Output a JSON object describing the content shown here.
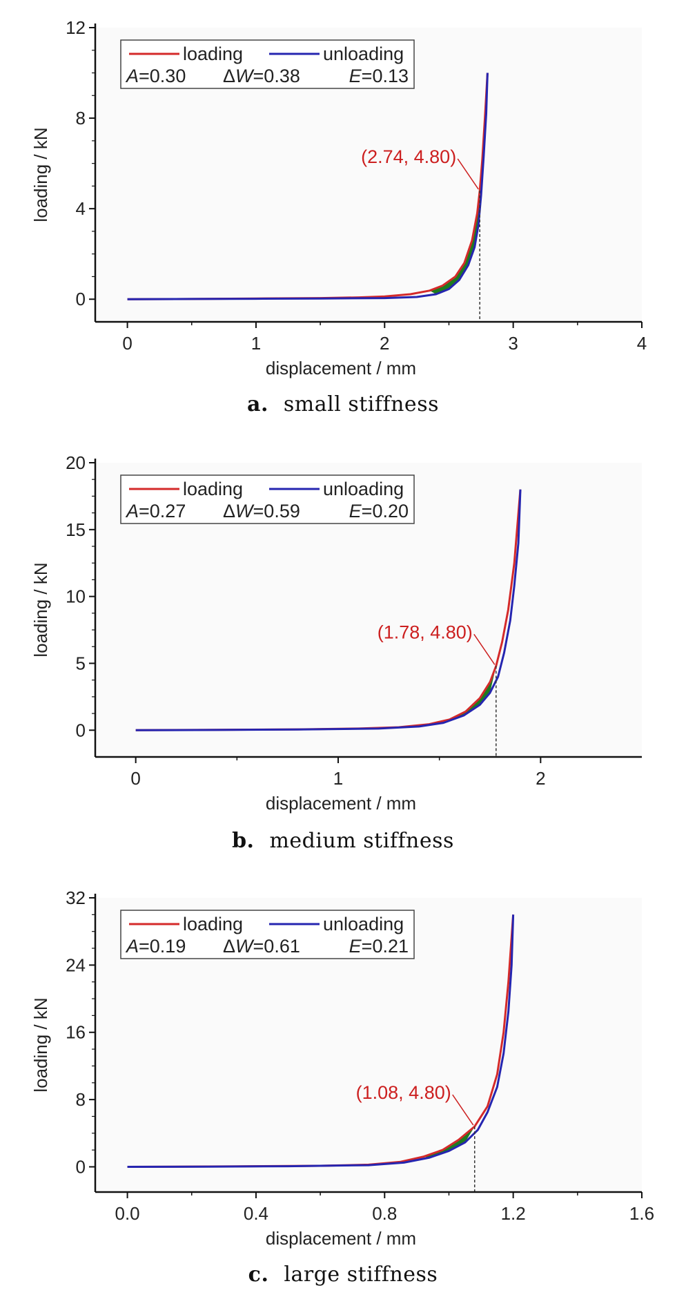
{
  "chart_data": [
    {
      "type": "line",
      "caption_letter": "a.",
      "caption_text": "small stiffness",
      "xlabel": "displacement / mm",
      "ylabel": "loading / kN",
      "xlim": [
        -0.25,
        4
      ],
      "ylim": [
        -1,
        12
      ],
      "xticks": [
        "0",
        "1",
        "2",
        "3",
        "4"
      ],
      "yticks": [
        "0",
        "4",
        "8",
        "12"
      ],
      "legend": {
        "loading_label": "loading",
        "unloading_label": "unloading",
        "A": "0.30",
        "dW": "0.38",
        "E": "0.13",
        "placement": "top-left"
      },
      "annotation": {
        "text": "(2.74, 4.80)",
        "x": 2.74,
        "y": 4.8
      },
      "series": [
        {
          "name": "loading",
          "color": "#d42a2a",
          "points": [
            [
              0,
              0
            ],
            [
              0.5,
              0.01
            ],
            [
              1,
              0.03
            ],
            [
              1.5,
              0.05
            ],
            [
              1.8,
              0.08
            ],
            [
              2.0,
              0.12
            ],
            [
              2.2,
              0.22
            ],
            [
              2.35,
              0.38
            ],
            [
              2.45,
              0.6
            ],
            [
              2.55,
              1.0
            ],
            [
              2.62,
              1.6
            ],
            [
              2.68,
              2.6
            ],
            [
              2.72,
              3.8
            ],
            [
              2.74,
              4.8
            ],
            [
              2.76,
              6.2
            ],
            [
              2.78,
              8.0
            ],
            [
              2.8,
              10.0
            ]
          ]
        },
        {
          "name": "unloading",
          "color": "#2525b0",
          "points": [
            [
              2.8,
              10.0
            ],
            [
              2.79,
              8.2
            ],
            [
              2.77,
              6.3
            ],
            [
              2.75,
              4.6
            ],
            [
              2.73,
              3.3
            ],
            [
              2.7,
              2.3
            ],
            [
              2.65,
              1.5
            ],
            [
              2.58,
              0.85
            ],
            [
              2.5,
              0.45
            ],
            [
              2.4,
              0.22
            ],
            [
              2.25,
              0.1
            ],
            [
              2.0,
              0.05
            ],
            [
              1.5,
              0.03
            ],
            [
              1.0,
              0.02
            ],
            [
              0.5,
              0.01
            ],
            [
              0,
              0
            ]
          ]
        }
      ]
    },
    {
      "type": "line",
      "caption_letter": "b.",
      "caption_text": "medium stiffness",
      "xlabel": "displacement / mm",
      "ylabel": "loading / kN",
      "xlim": [
        -0.2,
        2.5
      ],
      "ylim": [
        -2,
        20
      ],
      "xticks": [
        "0",
        "1",
        "2"
      ],
      "yticks": [
        "0",
        "5",
        "10",
        "15",
        "20"
      ],
      "legend": {
        "loading_label": "loading",
        "unloading_label": "unloading",
        "A": "0.27",
        "dW": "0.59",
        "E": "0.20",
        "placement": "top-left"
      },
      "annotation": {
        "text": "(1.78, 4.80)",
        "x": 1.78,
        "y": 4.8
      },
      "series": [
        {
          "name": "loading",
          "color": "#d42a2a",
          "points": [
            [
              0,
              0
            ],
            [
              0.4,
              0.03
            ],
            [
              0.8,
              0.06
            ],
            [
              1.1,
              0.12
            ],
            [
              1.3,
              0.22
            ],
            [
              1.45,
              0.45
            ],
            [
              1.55,
              0.8
            ],
            [
              1.63,
              1.4
            ],
            [
              1.7,
              2.4
            ],
            [
              1.75,
              3.6
            ],
            [
              1.78,
              4.8
            ],
            [
              1.81,
              6.6
            ],
            [
              1.84,
              9.0
            ],
            [
              1.87,
              12.5
            ],
            [
              1.9,
              18.0
            ]
          ]
        },
        {
          "name": "unloading",
          "color": "#2525b0",
          "points": [
            [
              1.9,
              18.0
            ],
            [
              1.89,
              14.0
            ],
            [
              1.87,
              10.8
            ],
            [
              1.85,
              8.2
            ],
            [
              1.82,
              5.8
            ],
            [
              1.79,
              4.0
            ],
            [
              1.75,
              2.8
            ],
            [
              1.7,
              1.9
            ],
            [
              1.62,
              1.1
            ],
            [
              1.52,
              0.55
            ],
            [
              1.4,
              0.28
            ],
            [
              1.2,
              0.12
            ],
            [
              0.8,
              0.05
            ],
            [
              0.4,
              0.02
            ],
            [
              0,
              0
            ]
          ]
        }
      ]
    },
    {
      "type": "line",
      "caption_letter": "c.",
      "caption_text": "large stiffness",
      "xlabel": "displacement / mm",
      "ylabel": "loading / kN",
      "xlim": [
        -0.1,
        1.6
      ],
      "ylim": [
        -3,
        32
      ],
      "xticks": [
        "0.0",
        "0.4",
        "0.8",
        "1.2",
        "1.6"
      ],
      "yticks": [
        "0",
        "8",
        "16",
        "24",
        "32"
      ],
      "legend": {
        "loading_label": "loading",
        "unloading_label": "unloading",
        "A": "0.19",
        "dW": "0.61",
        "E": "0.21",
        "placement": "top-left"
      },
      "annotation": {
        "text": "(1.08, 4.80)",
        "x": 1.08,
        "y": 4.8
      },
      "series": [
        {
          "name": "loading",
          "color": "#d42a2a",
          "points": [
            [
              0,
              0
            ],
            [
              0.3,
              0.05
            ],
            [
              0.6,
              0.12
            ],
            [
              0.75,
              0.25
            ],
            [
              0.85,
              0.6
            ],
            [
              0.92,
              1.2
            ],
            [
              0.98,
              2.0
            ],
            [
              1.03,
              3.2
            ],
            [
              1.08,
              4.8
            ],
            [
              1.12,
              7.2
            ],
            [
              1.15,
              11.0
            ],
            [
              1.17,
              16.0
            ],
            [
              1.185,
              22.0
            ],
            [
              1.2,
              30.0
            ]
          ]
        },
        {
          "name": "unloading",
          "color": "#2525b0",
          "points": [
            [
              1.2,
              30.0
            ],
            [
              1.195,
              24.0
            ],
            [
              1.185,
              18.5
            ],
            [
              1.17,
              13.5
            ],
            [
              1.15,
              9.5
            ],
            [
              1.12,
              6.5
            ],
            [
              1.09,
              4.4
            ],
            [
              1.05,
              2.9
            ],
            [
              1.0,
              1.9
            ],
            [
              0.94,
              1.1
            ],
            [
              0.86,
              0.5
            ],
            [
              0.75,
              0.2
            ],
            [
              0.5,
              0.07
            ],
            [
              0.25,
              0.02
            ],
            [
              0,
              0
            ]
          ]
        }
      ]
    }
  ]
}
